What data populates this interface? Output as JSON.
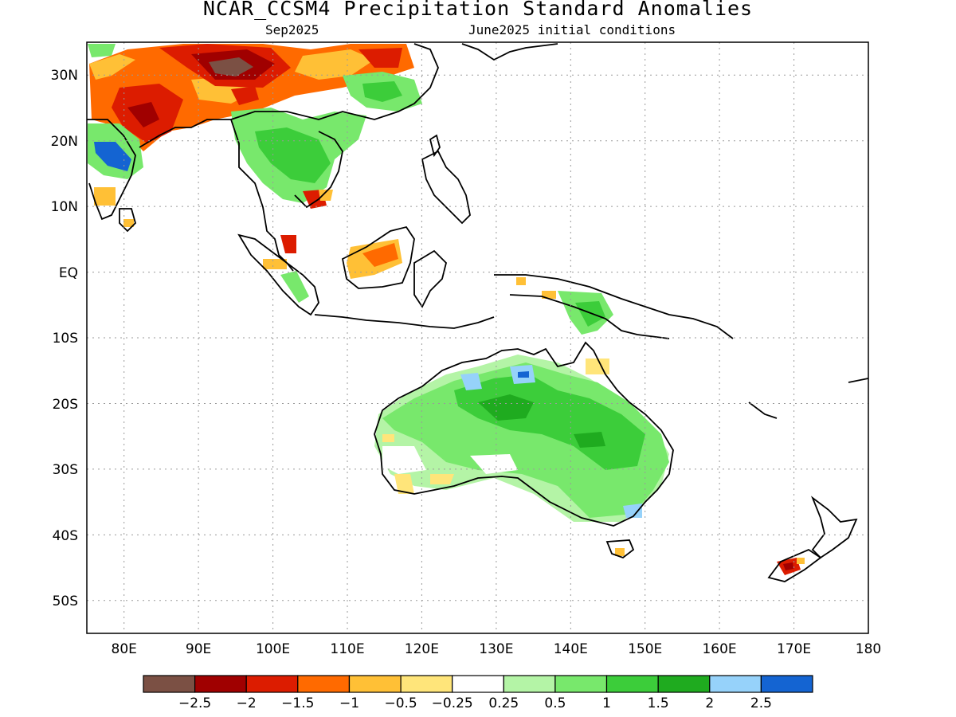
{
  "title": "NCAR_CCSM4 Precipitation Standard Anomalies",
  "subtitle_left": "Sep2025",
  "subtitle_right": "June2025 initial conditions",
  "map": {
    "lon_range": [
      75,
      180
    ],
    "lat_range": [
      -55,
      35
    ],
    "lat_labels": [
      "30N",
      "20N",
      "10N",
      "EQ",
      "10S",
      "20S",
      "30S",
      "40S",
      "50S"
    ],
    "lat_values": [
      30,
      20,
      10,
      0,
      -10,
      -20,
      -30,
      -40,
      -50
    ],
    "lon_labels": [
      "80E",
      "90E",
      "100E",
      "110E",
      "120E",
      "130E",
      "140E",
      "150E",
      "160E",
      "170E",
      "180"
    ],
    "lon_values": [
      80,
      90,
      100,
      110,
      120,
      130,
      140,
      150,
      160,
      170,
      180
    ],
    "grid": "dotted"
  },
  "colorbar": {
    "colors": [
      "#7b5044",
      "#a00000",
      "#dc1c00",
      "#ff6a00",
      "#ffc036",
      "#ffe57a",
      "#ffffff",
      "#b4f4a6",
      "#78e86c",
      "#3ccd3a",
      "#1fab1f",
      "#96d2fa",
      "#1464d2"
    ],
    "labels": [
      "−2.5",
      "−2",
      "−1.5",
      "−1",
      "−0.5",
      "−0.25",
      "0.25",
      "0.5",
      "1",
      "1.5",
      "2",
      "2.5"
    ]
  }
}
